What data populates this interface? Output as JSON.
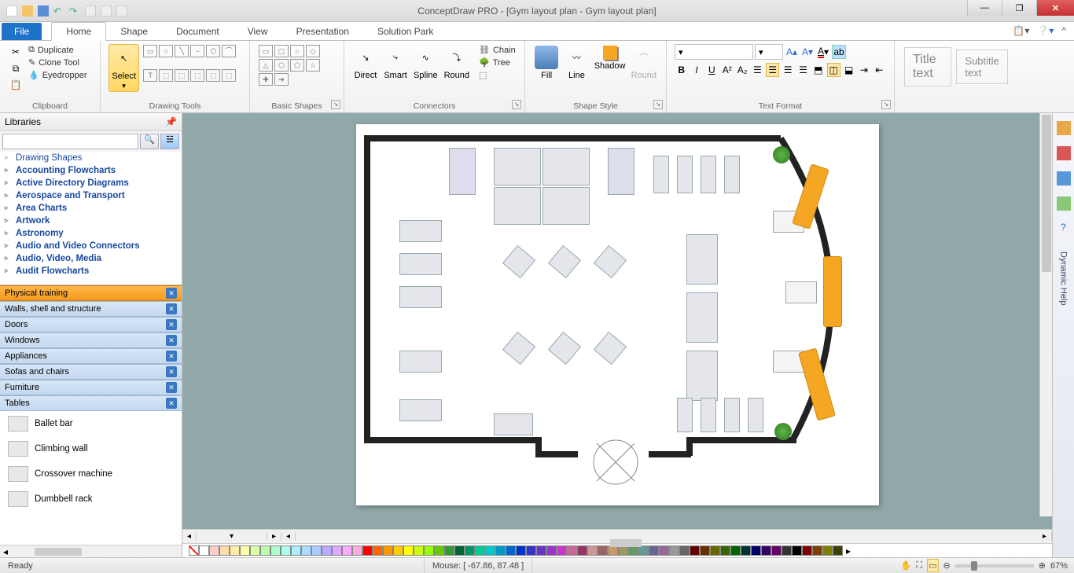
{
  "app": {
    "title": "ConceptDraw PRO - [Gym layout plan - Gym layout plan]"
  },
  "window": {
    "min": "—",
    "max": "❐",
    "close": "✕"
  },
  "tabs": {
    "file": "File",
    "items": [
      "Home",
      "Shape",
      "Document",
      "View",
      "Presentation",
      "Solution Park"
    ],
    "active": 0
  },
  "ribbon": {
    "clipboard": {
      "label": "Clipboard",
      "duplicate": "Duplicate",
      "clone": "Clone Tool",
      "eyedropper": "Eyedropper"
    },
    "drawing": {
      "label": "Drawing Tools",
      "select": "Select"
    },
    "shapes": {
      "label": "Basic Shapes"
    },
    "connectors": {
      "label": "Connectors",
      "direct": "Direct",
      "smart": "Smart",
      "spline": "Spline",
      "round": "Round",
      "chain": "Chain",
      "tree": "Tree"
    },
    "shapestyle": {
      "label": "Shape Style",
      "fill": "Fill",
      "line": "Line",
      "shadow": "Shadow",
      "round": "Round"
    },
    "textfmt": {
      "label": "Text Format",
      "fontname": "",
      "fontsize": ""
    },
    "titletext": "Title text",
    "subtitletext": "Subtitle text"
  },
  "libraries": {
    "header": "Libraries",
    "tree": [
      {
        "t": "Drawing Shapes",
        "b": false
      },
      {
        "t": "Accounting Flowcharts",
        "b": true
      },
      {
        "t": "Active Directory Diagrams",
        "b": true
      },
      {
        "t": "Aerospace and Transport",
        "b": true
      },
      {
        "t": "Area Charts",
        "b": true
      },
      {
        "t": "Artwork",
        "b": true
      },
      {
        "t": "Astronomy",
        "b": true
      },
      {
        "t": "Audio and Video Connectors",
        "b": true
      },
      {
        "t": "Audio, Video, Media",
        "b": true
      },
      {
        "t": "Audit Flowcharts",
        "b": true
      }
    ],
    "cats": [
      {
        "t": "Physical training",
        "active": true
      },
      {
        "t": "Walls, shell and structure",
        "active": false
      },
      {
        "t": "Doors",
        "active": false
      },
      {
        "t": "Windows",
        "active": false
      },
      {
        "t": "Appliances",
        "active": false
      },
      {
        "t": "Sofas and chairs",
        "active": false
      },
      {
        "t": "Furniture",
        "active": false
      },
      {
        "t": "Tables",
        "active": false
      }
    ],
    "shapes": [
      "Ballet bar",
      "Climbing wall",
      "Crossover machine",
      "Dumbbell rack"
    ]
  },
  "palette": [
    "#ffffff",
    "#ffcccc",
    "#ffddaa",
    "#ffeeaa",
    "#ffffaa",
    "#ddffaa",
    "#bbffaa",
    "#aaffcc",
    "#aaffee",
    "#aaeeff",
    "#aaddff",
    "#aaccff",
    "#bbaaff",
    "#ddaaff",
    "#ffaaff",
    "#ffaadd",
    "#ff0000",
    "#ff6600",
    "#ff9900",
    "#ffcc00",
    "#ffff00",
    "#ccff00",
    "#99ff00",
    "#66cc00",
    "#339933",
    "#006633",
    "#009966",
    "#00cc99",
    "#00cccc",
    "#0099cc",
    "#0066cc",
    "#0033cc",
    "#3333cc",
    "#6633cc",
    "#9933cc",
    "#cc33cc",
    "#cc6699",
    "#993366",
    "#cc9999",
    "#996666",
    "#cc9966",
    "#999966",
    "#669966",
    "#669999",
    "#666699",
    "#996699",
    "#999999",
    "#666666",
    "#660000",
    "#663300",
    "#666600",
    "#336600",
    "#006600",
    "#003333",
    "#000066",
    "#330066",
    "#660066",
    "#333333",
    "#000000",
    "#800000",
    "#804000",
    "#808000",
    "#404000"
  ],
  "status": {
    "ready": "Ready",
    "mouse": "Mouse: [ -67.86, 87.48 ]",
    "zoom": "67%"
  },
  "doctab": "▾",
  "rightrail_help": "Dynamic Help"
}
